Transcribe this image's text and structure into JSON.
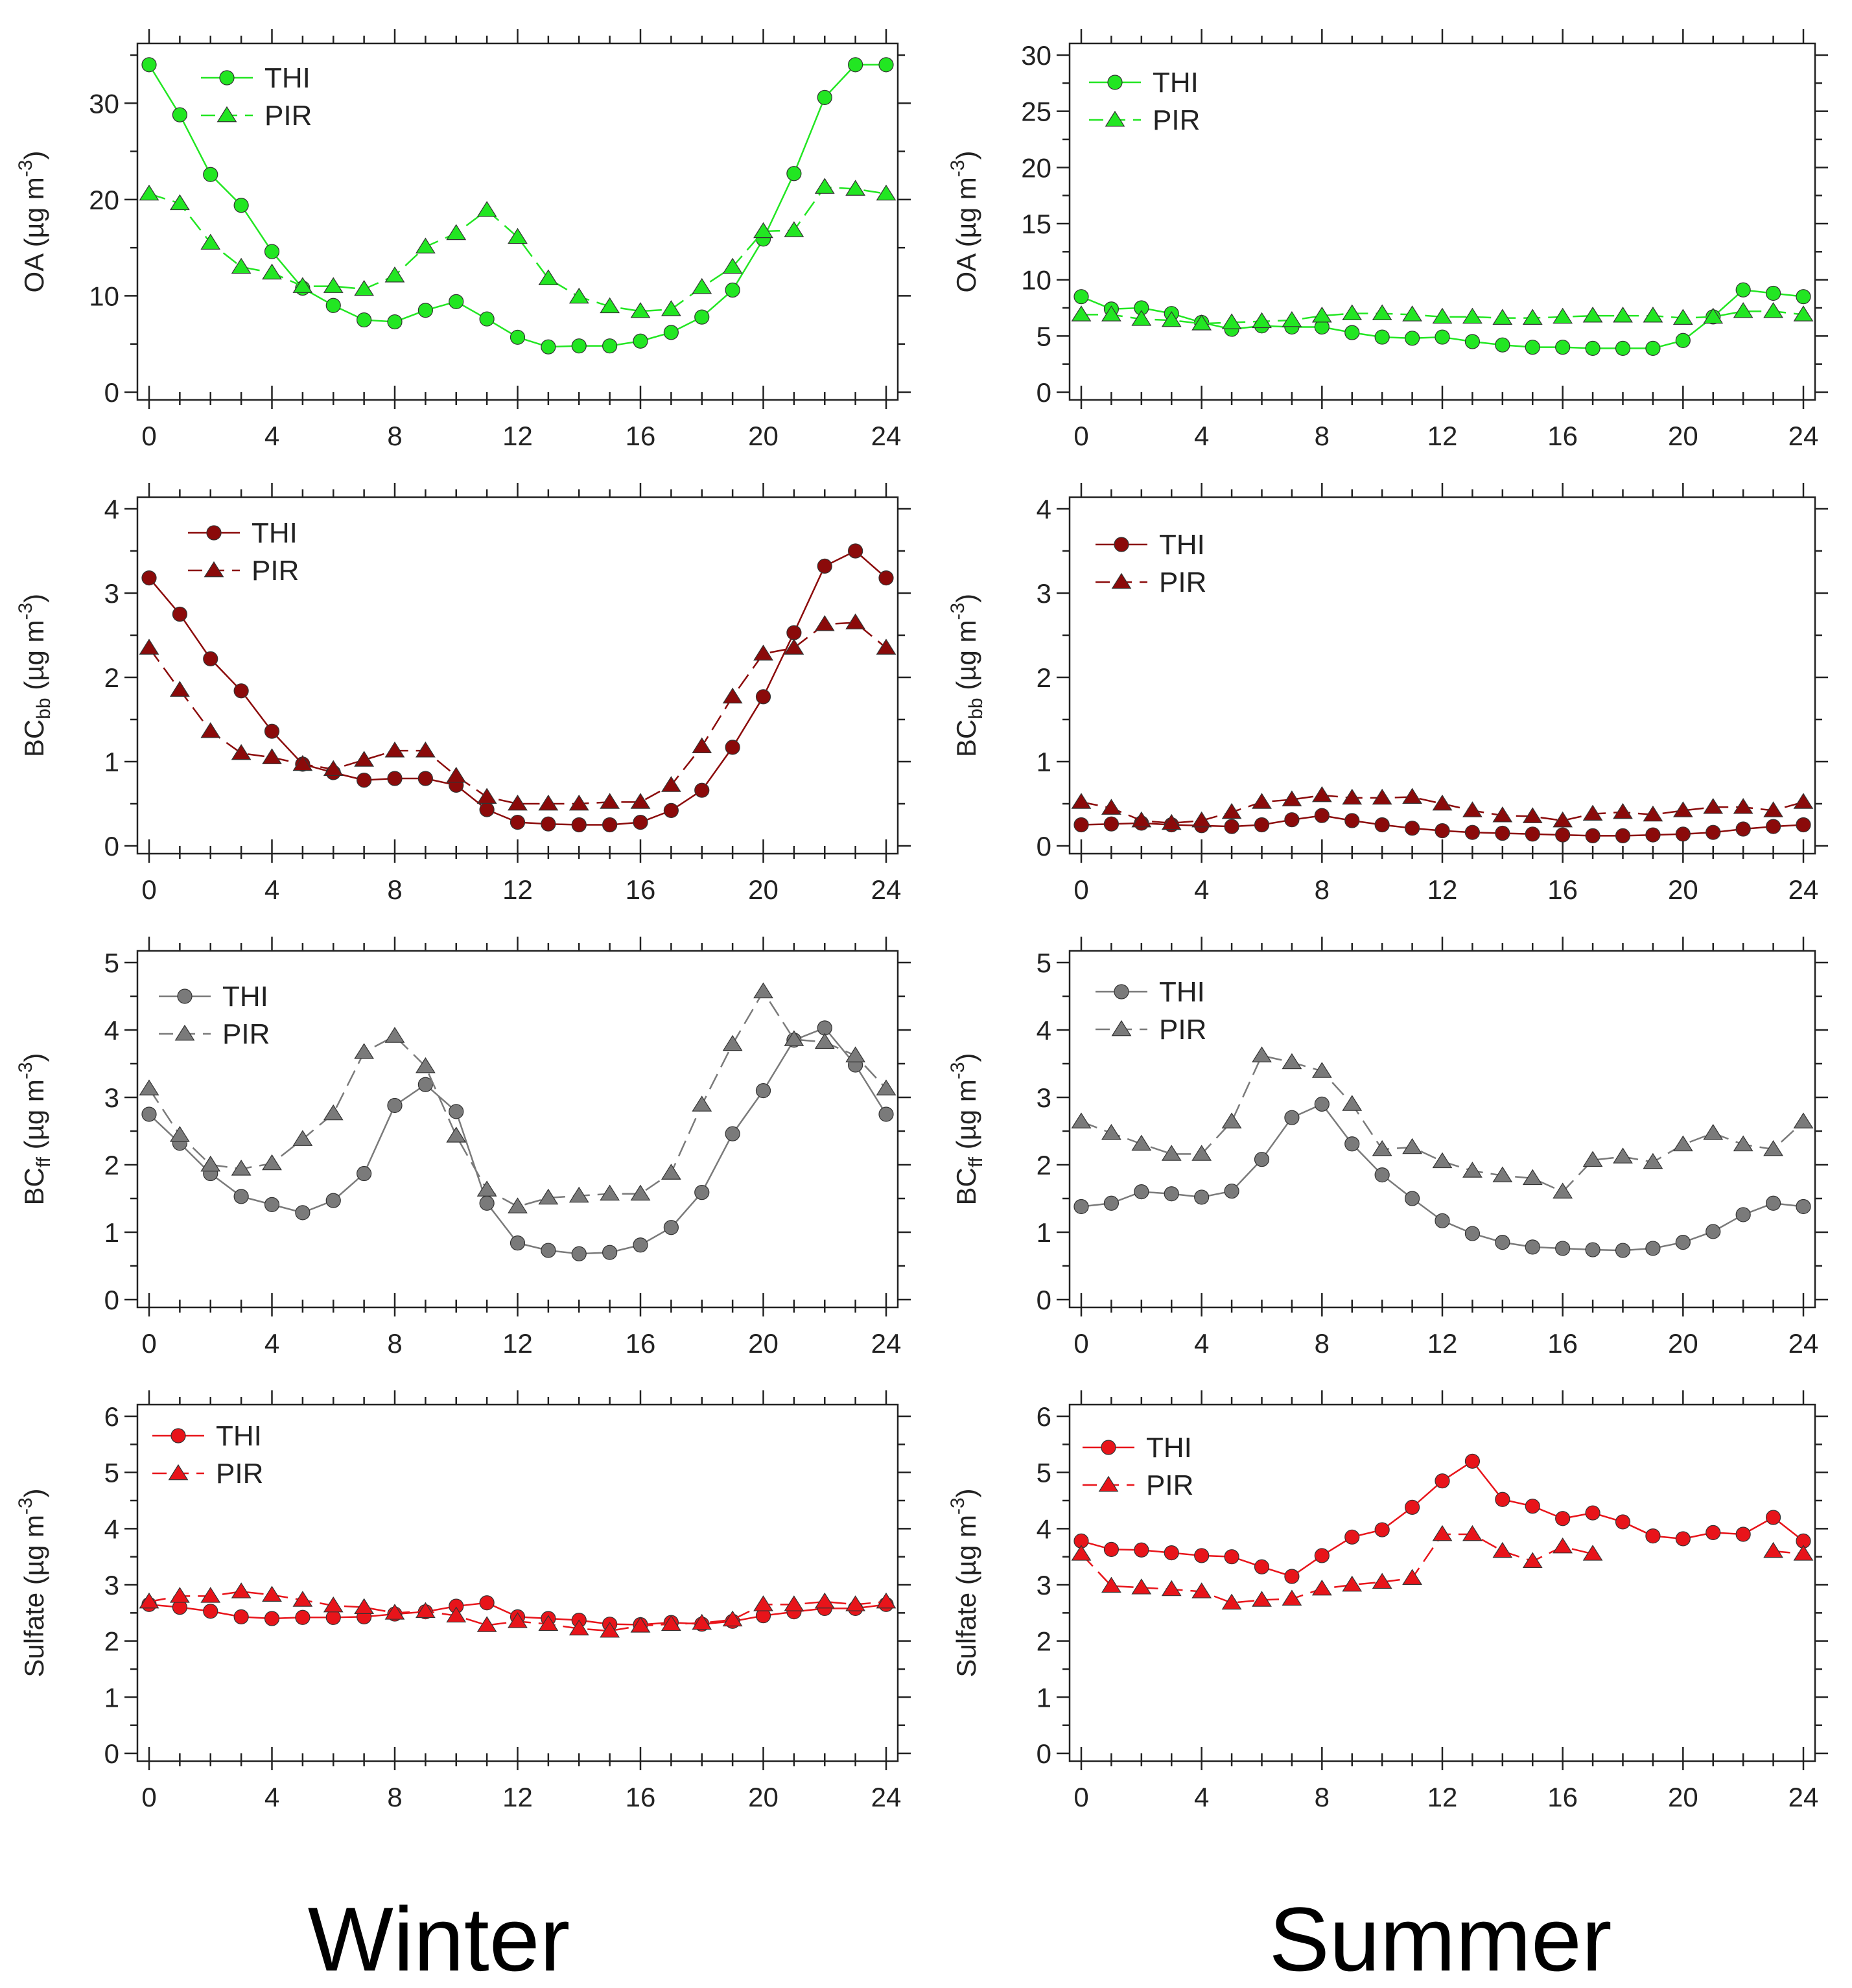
{
  "seasons": {
    "winter": "Winter",
    "summer": "Summer"
  },
  "legend": {
    "series_a": "THI",
    "series_b": "PIR"
  },
  "colors": {
    "oa": "#22e622",
    "bcbb": "#8b0a0a",
    "bcff": "#7a7a7a",
    "sulfate": "#e8141a"
  },
  "chart_data": [
    {
      "id": "oa-winter",
      "type": "line",
      "season": "Winter",
      "ylabel": "OA (µg m⁻³)",
      "ylabel_main": "OA",
      "ylabel_sub": "",
      "ylabel_unit": " (µg m",
      "ylabel_sup": "-3",
      "ylabel_close": ")",
      "xlim": [
        0,
        24
      ],
      "xticks": [
        0,
        4,
        8,
        12,
        16,
        20,
        24
      ],
      "ylim": [
        0,
        35
      ],
      "yticks": [
        0,
        10,
        20,
        30
      ],
      "x": [
        0,
        1,
        2,
        3,
        4,
        5,
        6,
        7,
        8,
        9,
        10,
        11,
        12,
        13,
        14,
        15,
        16,
        17,
        18,
        19,
        20,
        21,
        22,
        23,
        24
      ],
      "series": [
        {
          "name": "THI",
          "marker": "circle",
          "values": [
            34,
            28.8,
            22.6,
            19.4,
            14.6,
            10.8,
            9,
            7.5,
            7.3,
            8.5,
            9.4,
            7.6,
            5.7,
            4.7,
            4.8,
            4.8,
            5.3,
            6.2,
            7.8,
            10.6,
            15.9,
            22.7,
            30.6,
            34,
            34
          ]
        },
        {
          "name": "PIR",
          "marker": "triangle",
          "values": [
            20.6,
            19.6,
            15.5,
            13,
            12.4,
            11,
            11,
            10.7,
            12.1,
            15.1,
            16.5,
            18.9,
            16.1,
            11.8,
            9.9,
            8.9,
            8.4,
            8.6,
            10.9,
            13,
            16.7,
            16.8,
            21.3,
            21.1,
            20.6
          ]
        }
      ]
    },
    {
      "id": "oa-summer",
      "type": "line",
      "season": "Summer",
      "ylabel": "OA (µg m⁻³)",
      "ylabel_main": "OA",
      "ylabel_sub": "",
      "ylabel_unit": " (µg m",
      "ylabel_sup": "-3",
      "ylabel_close": ")",
      "xlim": [
        0,
        24
      ],
      "xticks": [
        0,
        4,
        8,
        12,
        16,
        20,
        24
      ],
      "ylim": [
        0,
        30
      ],
      "yticks": [
        0,
        5,
        10,
        15,
        20,
        25,
        30
      ],
      "x": [
        0,
        1,
        2,
        3,
        4,
        5,
        6,
        7,
        8,
        9,
        10,
        11,
        12,
        13,
        14,
        15,
        16,
        17,
        18,
        19,
        20,
        21,
        22,
        23,
        24
      ],
      "series": [
        {
          "name": "THI",
          "marker": "circle",
          "values": [
            8.5,
            7.4,
            7.5,
            7,
            6.2,
            5.6,
            5.9,
            5.8,
            5.8,
            5.3,
            4.9,
            4.8,
            4.9,
            4.5,
            4.2,
            4,
            4,
            3.9,
            3.9,
            3.9,
            4.6,
            6.7,
            9.1,
            8.8,
            8.5
          ]
        },
        {
          "name": "PIR",
          "marker": "triangle",
          "values": [
            6.9,
            6.9,
            6.5,
            6.4,
            6.1,
            6.2,
            6.3,
            6.4,
            6.8,
            7,
            7,
            6.9,
            6.7,
            6.7,
            6.6,
            6.6,
            6.7,
            6.8,
            6.8,
            6.8,
            6.6,
            6.7,
            7.2,
            7.2,
            6.9
          ]
        }
      ]
    },
    {
      "id": "bcbb-winter",
      "type": "line",
      "season": "Winter",
      "ylabel": "BCbb (µg m⁻³)",
      "ylabel_main": "BC",
      "ylabel_sub": "bb",
      "ylabel_unit": " (µg m",
      "ylabel_sup": "-3",
      "ylabel_close": ")",
      "xlim": [
        0,
        24
      ],
      "xticks": [
        0,
        4,
        8,
        12,
        16,
        20,
        24
      ],
      "ylim": [
        0,
        4
      ],
      "yticks": [
        0,
        1,
        2,
        3,
        4
      ],
      "x": [
        0,
        1,
        2,
        3,
        4,
        5,
        6,
        7,
        8,
        9,
        10,
        11,
        12,
        13,
        14,
        15,
        16,
        17,
        18,
        19,
        20,
        21,
        22,
        23,
        24
      ],
      "series": [
        {
          "name": "THI",
          "marker": "circle",
          "values": [
            3.18,
            2.75,
            2.22,
            1.84,
            1.36,
            0.97,
            0.87,
            0.78,
            0.8,
            0.8,
            0.72,
            0.43,
            0.28,
            0.26,
            0.25,
            0.25,
            0.28,
            0.42,
            0.66,
            1.17,
            1.77,
            2.53,
            3.32,
            3.5,
            3.18
          ]
        },
        {
          "name": "PIR",
          "marker": "triangle",
          "values": [
            2.35,
            1.85,
            1.36,
            1.1,
            1.05,
            0.97,
            0.91,
            1.02,
            1.13,
            1.13,
            0.83,
            0.58,
            0.5,
            0.5,
            0.5,
            0.52,
            0.52,
            0.72,
            1.18,
            1.77,
            2.28,
            2.35,
            2.63,
            2.65,
            2.35
          ]
        }
      ]
    },
    {
      "id": "bcbb-summer",
      "type": "line",
      "season": "Summer",
      "ylabel": "BCbb (µg m⁻³)",
      "ylabel_main": "BC",
      "ylabel_sub": "bb",
      "ylabel_unit": " (µg m",
      "ylabel_sup": "-3",
      "ylabel_close": ")",
      "xlim": [
        0,
        24
      ],
      "xticks": [
        0,
        4,
        8,
        12,
        16,
        20,
        24
      ],
      "ylim": [
        0,
        4
      ],
      "yticks": [
        0,
        1,
        2,
        3,
        4
      ],
      "x": [
        0,
        1,
        2,
        3,
        4,
        5,
        6,
        7,
        8,
        9,
        10,
        11,
        12,
        13,
        14,
        15,
        16,
        17,
        18,
        19,
        20,
        21,
        22,
        23,
        24
      ],
      "series": [
        {
          "name": "THI",
          "marker": "circle",
          "values": [
            0.25,
            0.26,
            0.27,
            0.25,
            0.24,
            0.23,
            0.25,
            0.31,
            0.36,
            0.3,
            0.25,
            0.21,
            0.18,
            0.16,
            0.15,
            0.14,
            0.13,
            0.12,
            0.12,
            0.13,
            0.14,
            0.16,
            0.2,
            0.23,
            0.25
          ]
        },
        {
          "name": "PIR",
          "marker": "triangle",
          "values": [
            0.52,
            0.45,
            0.3,
            0.27,
            0.3,
            0.4,
            0.52,
            0.55,
            0.6,
            0.57,
            0.57,
            0.58,
            0.5,
            0.42,
            0.36,
            0.35,
            0.3,
            0.38,
            0.4,
            0.37,
            0.42,
            0.46,
            0.46,
            0.42,
            0.52
          ]
        }
      ]
    },
    {
      "id": "bcff-winter",
      "type": "line",
      "season": "Winter",
      "ylabel": "BCff (µg m⁻³)",
      "ylabel_main": "BC",
      "ylabel_sub": "ff",
      "ylabel_unit": " (µg m",
      "ylabel_sup": "-3",
      "ylabel_close": ")",
      "xlim": [
        0,
        24
      ],
      "xticks": [
        0,
        4,
        8,
        12,
        16,
        20,
        24
      ],
      "ylim": [
        0,
        5
      ],
      "yticks": [
        0,
        1,
        2,
        3,
        4,
        5
      ],
      "x": [
        0,
        1,
        2,
        3,
        4,
        5,
        6,
        7,
        8,
        9,
        10,
        11,
        12,
        13,
        14,
        15,
        16,
        17,
        18,
        19,
        20,
        21,
        22,
        23,
        24
      ],
      "series": [
        {
          "name": "THI",
          "marker": "circle",
          "values": [
            2.75,
            2.32,
            1.87,
            1.53,
            1.41,
            1.29,
            1.47,
            1.87,
            2.88,
            3.19,
            2.79,
            1.43,
            0.84,
            0.73,
            0.68,
            0.7,
            0.81,
            1.07,
            1.59,
            2.46,
            3.1,
            3.85,
            4.03,
            3.48,
            2.75
          ]
        },
        {
          "name": "PIR",
          "marker": "triangle",
          "values": [
            3.13,
            2.44,
            2.0,
            1.94,
            2.02,
            2.38,
            2.76,
            3.67,
            3.91,
            3.46,
            2.43,
            1.63,
            1.38,
            1.51,
            1.54,
            1.57,
            1.57,
            1.88,
            2.89,
            3.79,
            4.57,
            3.86,
            3.82,
            3.62,
            3.13
          ]
        }
      ]
    },
    {
      "id": "bcff-summer",
      "type": "line",
      "season": "Summer",
      "ylabel": "BCff (µg m⁻³)",
      "ylabel_main": "BC",
      "ylabel_sub": "ff",
      "ylabel_unit": " (µg m",
      "ylabel_sup": "-3",
      "ylabel_close": ")",
      "xlim": [
        0,
        24
      ],
      "xticks": [
        0,
        4,
        8,
        12,
        16,
        20,
        24
      ],
      "ylim": [
        0,
        5
      ],
      "yticks": [
        0,
        1,
        2,
        3,
        4,
        5
      ],
      "x": [
        0,
        1,
        2,
        3,
        4,
        5,
        6,
        7,
        8,
        9,
        10,
        11,
        12,
        13,
        14,
        15,
        16,
        17,
        18,
        19,
        20,
        21,
        22,
        23,
        24
      ],
      "series": [
        {
          "name": "THI",
          "marker": "circle",
          "values": [
            1.38,
            1.43,
            1.6,
            1.57,
            1.52,
            1.61,
            2.08,
            2.7,
            2.9,
            2.31,
            1.85,
            1.5,
            1.17,
            0.98,
            0.85,
            0.78,
            0.76,
            0.74,
            0.73,
            0.76,
            0.85,
            1.01,
            1.26,
            1.43,
            1.38
          ]
        },
        {
          "name": "PIR",
          "marker": "triangle",
          "values": [
            2.64,
            2.47,
            2.31,
            2.16,
            2.16,
            2.64,
            3.62,
            3.52,
            3.39,
            2.9,
            2.23,
            2.26,
            2.05,
            1.91,
            1.84,
            1.8,
            1.6,
            2.07,
            2.12,
            2.04,
            2.3,
            2.47,
            2.3,
            2.23,
            2.64
          ]
        }
      ]
    },
    {
      "id": "sulfate-winter",
      "type": "line",
      "season": "Winter",
      "ylabel": "Sulfate (µg m⁻³)",
      "ylabel_main": "Sulfate",
      "ylabel_sub": "",
      "ylabel_unit": " (µg m",
      "ylabel_sup": "-3",
      "ylabel_close": ")",
      "xlim": [
        0,
        24
      ],
      "xticks": [
        0,
        4,
        8,
        12,
        16,
        20,
        24
      ],
      "ylim": [
        0,
        6
      ],
      "yticks": [
        0,
        1,
        2,
        3,
        4,
        5,
        6
      ],
      "x": [
        0,
        1,
        2,
        3,
        4,
        5,
        6,
        7,
        8,
        9,
        10,
        11,
        12,
        13,
        14,
        15,
        16,
        17,
        18,
        19,
        20,
        21,
        22,
        23,
        24
      ],
      "series": [
        {
          "name": "THI",
          "marker": "circle",
          "values": [
            2.65,
            2.6,
            2.53,
            2.43,
            2.4,
            2.42,
            2.42,
            2.43,
            2.48,
            2.52,
            2.62,
            2.68,
            2.43,
            2.4,
            2.37,
            2.3,
            2.29,
            2.33,
            2.3,
            2.35,
            2.45,
            2.52,
            2.58,
            2.58,
            2.65
          ]
        },
        {
          "name": "PIR",
          "marker": "triangle",
          "values": [
            2.7,
            2.8,
            2.8,
            2.88,
            2.82,
            2.73,
            2.63,
            2.6,
            2.5,
            2.53,
            2.45,
            2.28,
            2.35,
            2.3,
            2.22,
            2.18,
            2.27,
            2.3,
            2.32,
            2.38,
            2.65,
            2.65,
            2.7,
            2.65,
            2.7
          ]
        }
      ]
    },
    {
      "id": "sulfate-summer",
      "type": "line",
      "season": "Summer",
      "ylabel": "Sulfate (µg m⁻³)",
      "ylabel_main": "Sulfate",
      "ylabel_sub": "",
      "ylabel_unit": " (µg m",
      "ylabel_sup": "-3",
      "ylabel_close": ")",
      "xlim": [
        0,
        24
      ],
      "xticks": [
        0,
        4,
        8,
        12,
        16,
        20,
        24
      ],
      "ylim": [
        0,
        6
      ],
      "yticks": [
        0,
        1,
        2,
        3,
        4,
        5,
        6
      ],
      "x": [
        0,
        1,
        2,
        3,
        4,
        5,
        6,
        7,
        8,
        9,
        10,
        11,
        12,
        13,
        14,
        15,
        16,
        17,
        18,
        19,
        20,
        21,
        22,
        23,
        24
      ],
      "series": [
        {
          "name": "THI",
          "marker": "circle",
          "values": [
            3.78,
            3.63,
            3.62,
            3.57,
            3.52,
            3.5,
            3.32,
            3.15,
            3.52,
            3.85,
            3.98,
            4.38,
            4.85,
            5.2,
            4.52,
            4.4,
            4.18,
            4.28,
            4.12,
            3.87,
            3.82,
            3.93,
            3.9,
            4.2,
            3.78
          ]
        },
        {
          "name": "PIR",
          "marker": "triangle",
          "values": [
            3.55,
            2.98,
            2.95,
            2.92,
            2.88,
            2.68,
            2.73,
            2.75,
            2.93,
            3.0,
            3.05,
            3.12,
            3.9,
            3.9,
            3.6,
            3.42,
            3.68,
            3.55,
            null,
            null,
            null,
            null,
            null,
            3.6,
            3.55
          ]
        }
      ]
    }
  ]
}
